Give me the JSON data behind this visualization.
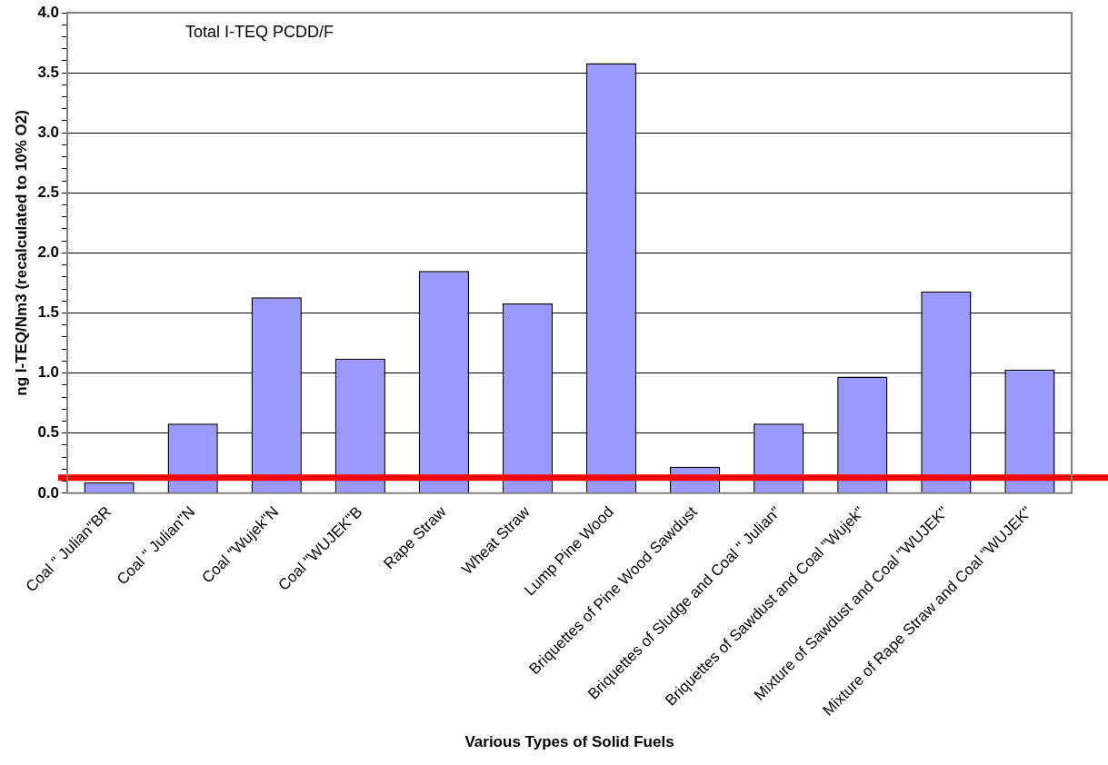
{
  "chart_data": {
    "type": "bar",
    "title": "Total I-TEQ PCDD/F",
    "xlabel": "Various Types of Solid Fuels",
    "ylabel": "ng I-TEQ/Nm3 (recalculated to 10% O2)",
    "categories": [
      "Coal \" Julian\"BR",
      "Coal \" Julian\"N",
      "Coal \"Wujek\"N",
      "Coal \"WUJEK\"B",
      "Rape Straw",
      "Wheat Straw",
      "Lump Pine Wood",
      "Briquettes of Pine Wood Sawdust",
      "Briquettes of Sludge and Coal \" Julian\"",
      "Briquettes of Sawdust and Coal \"Wujek\"",
      "Mixture of Sawdust and Coal \"WUJEK\"",
      "Mixture of Rape Straw and Coal \"WUJEK\""
    ],
    "values": [
      0.09,
      0.58,
      1.63,
      1.12,
      1.85,
      1.58,
      3.58,
      0.22,
      0.58,
      0.97,
      1.68,
      1.03
    ],
    "color": "#9999ff",
    "ylim": [
      0,
      4
    ],
    "yticks": [
      {
        "value": 0,
        "label": "0.0"
      },
      {
        "value": 0.1,
        "label": null
      },
      {
        "value": 0.2,
        "label": null
      },
      {
        "value": 0.3,
        "label": null
      },
      {
        "value": 0.4,
        "label": null
      },
      {
        "value": 0.5,
        "label": "0.5"
      },
      {
        "value": 0.6,
        "label": null
      },
      {
        "value": 0.7,
        "label": null
      },
      {
        "value": 0.8,
        "label": null
      },
      {
        "value": 0.9,
        "label": null
      },
      {
        "value": 1,
        "label": "1.0"
      },
      {
        "value": 1.1,
        "label": null
      },
      {
        "value": 1.2,
        "label": null
      },
      {
        "value": 1.3,
        "label": null
      },
      {
        "value": 1.4,
        "label": null
      },
      {
        "value": 1.5,
        "label": "1.5"
      },
      {
        "value": 1.6,
        "label": null
      },
      {
        "value": 1.7,
        "label": null
      },
      {
        "value": 1.8,
        "label": null
      },
      {
        "value": 1.9,
        "label": null
      },
      {
        "value": 2,
        "label": "2.0"
      },
      {
        "value": 2.1,
        "label": null
      },
      {
        "value": 2.2,
        "label": null
      },
      {
        "value": 2.3,
        "label": null
      },
      {
        "value": 2.4,
        "label": null
      },
      {
        "value": 2.5,
        "label": "2.5"
      },
      {
        "value": 2.6,
        "label": null
      },
      {
        "value": 2.7,
        "label": null
      },
      {
        "value": 2.8,
        "label": null
      },
      {
        "value": 2.9,
        "label": null
      },
      {
        "value": 3,
        "label": "3.0"
      },
      {
        "value": 3.1,
        "label": null
      },
      {
        "value": 3.2,
        "label": null
      },
      {
        "value": 3.3,
        "label": null
      },
      {
        "value": 3.4,
        "label": null
      },
      {
        "value": 3.5,
        "label": "3.5"
      },
      {
        "value": 3.6,
        "label": null
      },
      {
        "value": 3.7,
        "label": null
      },
      {
        "value": 3.8,
        "label": null
      },
      {
        "value": 3.9,
        "label": null
      },
      {
        "value": 4,
        "label": "4.0"
      }
    ],
    "grid": "y",
    "legend": false,
    "ref_lines": [
      {
        "axis": "y",
        "value": 0.13,
        "color": "#ff0000"
      }
    ]
  }
}
